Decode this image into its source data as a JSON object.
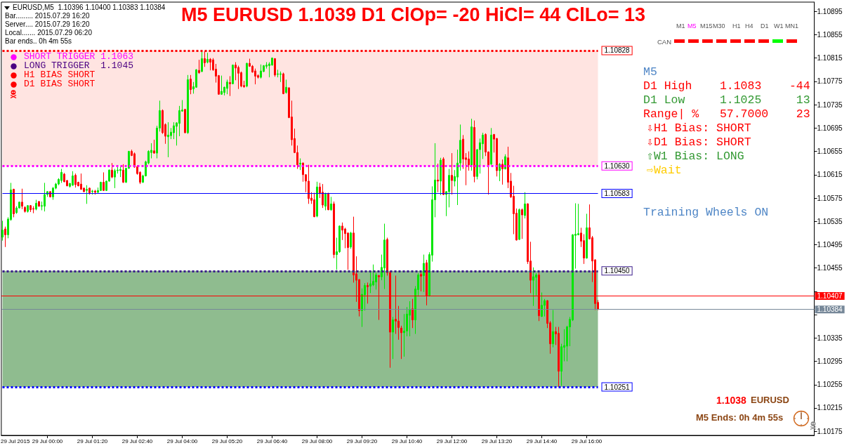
{
  "chart_data": {
    "type": "candlestick",
    "title": "M5 EURUSD 1.1039 D1 ClOp= -20 HiCl= 44 ClLo= 13",
    "x": [
      "2015-07-28T22:40",
      "2015-07-28T22:45",
      "2015-07-28T22:50",
      "2015-07-28T22:55",
      "2015-07-28T23:00",
      "2015-07-28T23:05",
      "2015-07-28T23:10",
      "2015-07-28T23:15",
      "2015-07-28T23:20",
      "2015-07-28T23:25",
      "2015-07-28T23:30",
      "2015-07-28T23:35",
      "2015-07-28T23:40",
      "2015-07-28T23:45",
      "2015-07-28T23:50",
      "2015-07-28T23:55",
      "2015-07-29T00:00",
      "2015-07-29T00:05",
      "2015-07-29T00:10",
      "2015-07-29T00:15",
      "2015-07-29T00:20",
      "2015-07-29T00:25",
      "2015-07-29T00:30",
      "2015-07-29T00:35",
      "2015-07-29T00:40",
      "2015-07-29T00:45",
      "2015-07-29T00:50",
      "2015-07-29T00:55",
      "2015-07-29T01:00",
      "2015-07-29T01:05",
      "2015-07-29T01:10",
      "2015-07-29T01:15",
      "2015-07-29T01:20",
      "2015-07-29T01:25",
      "2015-07-29T01:30",
      "2015-07-29T01:35",
      "2015-07-29T01:40",
      "2015-07-29T01:45",
      "2015-07-29T01:50",
      "2015-07-29T01:55",
      "2015-07-29T02:00",
      "2015-07-29T02:05",
      "2015-07-29T02:10",
      "2015-07-29T02:15",
      "2015-07-29T02:20",
      "2015-07-29T02:25",
      "2015-07-29T02:30",
      "2015-07-29T02:35",
      "2015-07-29T02:40",
      "2015-07-29T02:45",
      "2015-07-29T02:50",
      "2015-07-29T02:55",
      "2015-07-29T03:00",
      "2015-07-29T03:05",
      "2015-07-29T03:10",
      "2015-07-29T03:15",
      "2015-07-29T03:20",
      "2015-07-29T03:25",
      "2015-07-29T03:30",
      "2015-07-29T03:35",
      "2015-07-29T03:40",
      "2015-07-29T03:45",
      "2015-07-29T03:50",
      "2015-07-29T03:55",
      "2015-07-29T04:00",
      "2015-07-29T04:05",
      "2015-07-29T04:10",
      "2015-07-29T04:15",
      "2015-07-29T04:20",
      "2015-07-29T04:25",
      "2015-07-29T04:30",
      "2015-07-29T04:35",
      "2015-07-29T04:40",
      "2015-07-29T04:45",
      "2015-07-29T04:50",
      "2015-07-29T04:55",
      "2015-07-29T05:00",
      "2015-07-29T05:05",
      "2015-07-29T05:10",
      "2015-07-29T05:15",
      "2015-07-29T05:20",
      "2015-07-29T05:25",
      "2015-07-29T05:30",
      "2015-07-29T05:35",
      "2015-07-29T05:40",
      "2015-07-29T05:45",
      "2015-07-29T05:50",
      "2015-07-29T05:55",
      "2015-07-29T06:00",
      "2015-07-29T06:05",
      "2015-07-29T06:10",
      "2015-07-29T06:15",
      "2015-07-29T06:20",
      "2015-07-29T06:25",
      "2015-07-29T06:30",
      "2015-07-29T06:35",
      "2015-07-29T06:40",
      "2015-07-29T06:45",
      "2015-07-29T06:50",
      "2015-07-29T06:55",
      "2015-07-29T07:00",
      "2015-07-29T07:05",
      "2015-07-29T07:10",
      "2015-07-29T07:15",
      "2015-07-29T07:20",
      "2015-07-29T07:25",
      "2015-07-29T07:30",
      "2015-07-29T07:35",
      "2015-07-29T07:40",
      "2015-07-29T07:45",
      "2015-07-29T07:50",
      "2015-07-29T07:55",
      "2015-07-29T08:00",
      "2015-07-29T08:05",
      "2015-07-29T08:10",
      "2015-07-29T08:15",
      "2015-07-29T08:20",
      "2015-07-29T08:25",
      "2015-07-29T08:30",
      "2015-07-29T08:35",
      "2015-07-29T08:40",
      "2015-07-29T08:45",
      "2015-07-29T08:50",
      "2015-07-29T08:55",
      "2015-07-29T09:00",
      "2015-07-29T09:05",
      "2015-07-29T09:10",
      "2015-07-29T09:15",
      "2015-07-29T09:20",
      "2015-07-29T09:25",
      "2015-07-29T09:30",
      "2015-07-29T09:35",
      "2015-07-29T09:40",
      "2015-07-29T09:45",
      "2015-07-29T09:50",
      "2015-07-29T09:55",
      "2015-07-29T10:00",
      "2015-07-29T10:05",
      "2015-07-29T10:10",
      "2015-07-29T10:15",
      "2015-07-29T10:20",
      "2015-07-29T10:25",
      "2015-07-29T10:30",
      "2015-07-29T10:35",
      "2015-07-29T10:40",
      "2015-07-29T10:45",
      "2015-07-29T10:50",
      "2015-07-29T10:55",
      "2015-07-29T11:00",
      "2015-07-29T11:05",
      "2015-07-29T11:10",
      "2015-07-29T11:15",
      "2015-07-29T11:20",
      "2015-07-29T11:25",
      "2015-07-29T11:30",
      "2015-07-29T11:35",
      "2015-07-29T11:40",
      "2015-07-29T11:45",
      "2015-07-29T11:50",
      "2015-07-29T11:55",
      "2015-07-29T12:00",
      "2015-07-29T12:05",
      "2015-07-29T12:10",
      "2015-07-29T12:15",
      "2015-07-29T12:20",
      "2015-07-29T12:25",
      "2015-07-29T12:30",
      "2015-07-29T12:35",
      "2015-07-29T12:40",
      "2015-07-29T12:45",
      "2015-07-29T12:50",
      "2015-07-29T12:55",
      "2015-07-29T13:00",
      "2015-07-29T13:05",
      "2015-07-29T13:10",
      "2015-07-29T13:15",
      "2015-07-29T13:20",
      "2015-07-29T13:25",
      "2015-07-29T13:30",
      "2015-07-29T13:35",
      "2015-07-29T13:40",
      "2015-07-29T13:45",
      "2015-07-29T13:50",
      "2015-07-29T13:55",
      "2015-07-29T14:00",
      "2015-07-29T14:05",
      "2015-07-29T14:10",
      "2015-07-29T14:15",
      "2015-07-29T14:20",
      "2015-07-29T14:25",
      "2015-07-29T14:30",
      "2015-07-29T14:35",
      "2015-07-29T14:40",
      "2015-07-29T14:45",
      "2015-07-29T14:50",
      "2015-07-29T14:55",
      "2015-07-29T15:00",
      "2015-07-29T15:05",
      "2015-07-29T15:10",
      "2015-07-29T15:15",
      "2015-07-29T15:20",
      "2015-07-29T15:25",
      "2015-07-29T15:30",
      "2015-07-29T15:35",
      "2015-07-29T15:40",
      "2015-07-29T15:45",
      "2015-07-29T15:50",
      "2015-07-29T15:55",
      "2015-07-29T16:00",
      "2015-07-29T16:05",
      "2015-07-29T16:10",
      "2015-07-29T16:15",
      "2015-07-29T16:20"
    ],
    "ohlc": [
      [
        1.10508,
        1.10536,
        1.10502,
        1.1052
      ],
      [
        1.10522,
        1.10526,
        1.10491,
        1.10512
      ],
      [
        1.10512,
        1.10542,
        1.10506,
        1.10539
      ],
      [
        1.10538,
        1.10601,
        1.10536,
        1.10589
      ],
      [
        1.1059,
        1.10591,
        1.10542,
        1.10548
      ],
      [
        1.1055,
        1.10561,
        1.10548,
        1.10558
      ],
      [
        1.10558,
        1.10569,
        1.10557,
        1.10568
      ],
      [
        1.10568,
        1.10591,
        1.10556,
        1.10561
      ],
      [
        1.10559,
        1.10561,
        1.1055,
        1.10552
      ],
      [
        1.10552,
        1.10563,
        1.1055,
        1.10562
      ],
      [
        1.10562,
        1.10563,
        1.10551,
        1.10555
      ],
      [
        1.10557,
        1.10561,
        1.10549,
        1.10556
      ],
      [
        1.10556,
        1.10572,
        1.10554,
        1.10566
      ],
      [
        1.10569,
        1.1057,
        1.1056,
        1.10561
      ],
      [
        1.10561,
        1.10569,
        1.10554,
        1.10562
      ],
      [
        1.10561,
        1.10601,
        1.10552,
        1.10581
      ],
      [
        1.10581,
        1.10587,
        1.10577,
        1.10586
      ],
      [
        1.10586,
        1.10587,
        1.10576,
        1.10577
      ],
      [
        1.10577,
        1.10594,
        1.10572,
        1.10592
      ],
      [
        1.10592,
        1.10601,
        1.1059,
        1.10599
      ],
      [
        1.10599,
        1.10609,
        1.10597,
        1.10607
      ],
      [
        1.10605,
        1.10625,
        1.10601,
        1.10619
      ],
      [
        1.10616,
        1.10618,
        1.10602,
        1.10603
      ],
      [
        1.10605,
        1.10606,
        1.10595,
        1.10596
      ],
      [
        1.10595,
        1.10601,
        1.10593,
        1.106
      ],
      [
        1.10597,
        1.10621,
        1.10596,
        1.10613
      ],
      [
        1.10614,
        1.10617,
        1.10593,
        1.10598
      ],
      [
        1.10602,
        1.10603,
        1.10595,
        1.10596
      ],
      [
        1.10599,
        1.10617,
        1.10589,
        1.1059
      ],
      [
        1.10592,
        1.10593,
        1.10585,
        1.10586
      ],
      [
        1.10588,
        1.10597,
        1.10565,
        1.1059
      ],
      [
        1.10592,
        1.10593,
        1.10581,
        1.10584
      ],
      [
        1.10586,
        1.10589,
        1.10581,
        1.10587
      ],
      [
        1.10587,
        1.10589,
        1.10581,
        1.10585
      ],
      [
        1.10585,
        1.10593,
        1.10583,
        1.10588
      ],
      [
        1.10588,
        1.10603,
        1.10587,
        1.10602
      ],
      [
        1.10602,
        1.10619,
        1.10587,
        1.10588
      ],
      [
        1.10588,
        1.10605,
        1.10587,
        1.10604
      ],
      [
        1.10604,
        1.10624,
        1.10603,
        1.10623
      ],
      [
        1.10623,
        1.10635,
        1.10609,
        1.10611
      ],
      [
        1.10611,
        1.10625,
        1.10592,
        1.10622
      ],
      [
        1.10622,
        1.10629,
        1.10617,
        1.10623
      ],
      [
        1.10622,
        1.10629,
        1.10611,
        1.10624
      ],
      [
        1.10623,
        1.10633,
        1.10601,
        1.10602
      ],
      [
        1.10602,
        1.10627,
        1.10601,
        1.10626
      ],
      [
        1.10626,
        1.10656,
        1.10625,
        1.10655
      ],
      [
        1.10655,
        1.10658,
        1.10647,
        1.10648
      ],
      [
        1.10651,
        1.10653,
        1.10627,
        1.10628
      ],
      [
        1.10629,
        1.10631,
        1.10615,
        1.10617
      ],
      [
        1.10619,
        1.10621,
        1.10599,
        1.10602
      ],
      [
        1.10602,
        1.10615,
        1.10601,
        1.10613
      ],
      [
        1.10613,
        1.10639,
        1.10612,
        1.10637
      ],
      [
        1.10635,
        1.10657,
        1.10633,
        1.10655
      ],
      [
        1.10653,
        1.10669,
        1.10643,
        1.10657
      ],
      [
        1.10656,
        1.10675,
        1.10651,
        1.10652
      ],
      [
        1.10652,
        1.10699,
        1.10643,
        1.10695
      ],
      [
        1.10695,
        1.10742,
        1.10689,
        1.10725
      ],
      [
        1.10725,
        1.10727,
        1.10685,
        1.10687
      ],
      [
        1.10701,
        1.10703,
        1.10668,
        1.10681
      ],
      [
        1.1068,
        1.10705,
        1.10645,
        1.10683
      ],
      [
        1.10682,
        1.10695,
        1.10676,
        1.10688
      ],
      [
        1.10687,
        1.10705,
        1.10676,
        1.10699
      ],
      [
        1.10698,
        1.10705,
        1.10665,
        1.10704
      ],
      [
        1.10703,
        1.10733,
        1.10681,
        1.10725
      ],
      [
        1.10724,
        1.10743,
        1.10723,
        1.10726
      ],
      [
        1.10727,
        1.10728,
        1.10686,
        1.10687
      ],
      [
        1.10687,
        1.10786,
        1.10685,
        1.10778
      ],
      [
        1.10779,
        1.10786,
        1.10753,
        1.10761
      ],
      [
        1.10762,
        1.10774,
        1.10754,
        1.10766
      ],
      [
        1.10765,
        1.10796,
        1.10764,
        1.10795
      ],
      [
        1.10794,
        1.10812,
        1.10788,
        1.1079
      ],
      [
        1.10792,
        1.10827,
        1.10791,
        1.10814
      ],
      [
        1.10814,
        1.10827,
        1.108,
        1.10807
      ],
      [
        1.10808,
        1.10824,
        1.10806,
        1.10813
      ],
      [
        1.10813,
        1.10815,
        1.10794,
        1.10808
      ],
      [
        1.10812,
        1.10815,
        1.10793,
        1.10795
      ],
      [
        1.10796,
        1.10805,
        1.10773,
        1.10784
      ],
      [
        1.10785,
        1.10786,
        1.10752,
        1.10753
      ],
      [
        1.10753,
        1.10785,
        1.10752,
        1.10758
      ],
      [
        1.10756,
        1.10766,
        1.10751,
        1.10765
      ],
      [
        1.10763,
        1.10778,
        1.10753,
        1.10774
      ],
      [
        1.10773,
        1.10784,
        1.1075,
        1.10771
      ],
      [
        1.10771,
        1.10804,
        1.1077,
        1.10803
      ],
      [
        1.10803,
        1.10808,
        1.10777,
        1.10798
      ],
      [
        1.10799,
        1.10802,
        1.10762,
        1.10789
      ],
      [
        1.1079,
        1.10792,
        1.10765,
        1.10767
      ],
      [
        1.10768,
        1.10776,
        1.10764,
        1.10766
      ],
      [
        1.10767,
        1.10807,
        1.10765,
        1.10806
      ],
      [
        1.10806,
        1.10814,
        1.108,
        1.10801
      ],
      [
        1.10801,
        1.10803,
        1.1079,
        1.10791
      ],
      [
        1.10793,
        1.10797,
        1.1077,
        1.10784
      ],
      [
        1.10785,
        1.10787,
        1.1078,
        1.10782
      ],
      [
        1.10782,
        1.10804,
        1.1078,
        1.10793
      ],
      [
        1.10792,
        1.10803,
        1.10791,
        1.10802
      ],
      [
        1.10801,
        1.10808,
        1.10797,
        1.10803
      ],
      [
        1.10802,
        1.10808,
        1.10782,
        1.10805
      ],
      [
        1.10803,
        1.10816,
        1.10802,
        1.10815
      ],
      [
        1.10814,
        1.10815,
        1.10783,
        1.10786
      ],
      [
        1.10787,
        1.10795,
        1.10782,
        1.10788
      ],
      [
        1.10787,
        1.10792,
        1.10774,
        1.10788
      ],
      [
        1.10788,
        1.1079,
        1.10753,
        1.10754
      ],
      [
        1.10756,
        1.10778,
        1.10754,
        1.10765
      ],
      [
        1.10764,
        1.10765,
        1.10712,
        1.10713
      ],
      [
        1.10714,
        1.10742,
        1.10665,
        1.10675
      ],
      [
        1.10677,
        1.10694,
        1.10652,
        1.10653
      ],
      [
        1.10653,
        1.10665,
        1.10625,
        1.10632
      ],
      [
        1.10633,
        1.10643,
        1.10623,
        1.10635
      ],
      [
        1.10635,
        1.10636,
        1.10603,
        1.10615
      ],
      [
        1.10615,
        1.10616,
        1.10585,
        1.10604
      ],
      [
        1.10604,
        1.10632,
        1.10565,
        1.10574
      ],
      [
        1.10575,
        1.10585,
        1.10565,
        1.10571
      ],
      [
        1.10572,
        1.10584,
        1.10542,
        1.10543
      ],
      [
        1.10544,
        1.10603,
        1.10542,
        1.10594
      ],
      [
        1.10594,
        1.10601,
        1.10575,
        1.10583
      ],
      [
        1.10585,
        1.10599,
        1.10558,
        1.10563
      ],
      [
        1.10561,
        1.10584,
        1.10554,
        1.10583
      ],
      [
        1.10583,
        1.10584,
        1.10554,
        1.10555
      ],
      [
        1.10555,
        1.10577,
        1.10553,
        1.10565
      ],
      [
        1.10565,
        1.10569,
        1.10472,
        1.10478
      ],
      [
        1.10478,
        1.10507,
        1.10452,
        1.10483
      ],
      [
        1.10483,
        1.10528,
        1.10481,
        1.10527
      ],
      [
        1.10527,
        1.10533,
        1.10503,
        1.1052
      ],
      [
        1.10522,
        1.10524,
        1.10489,
        1.10514
      ],
      [
        1.10515,
        1.10516,
        1.10452,
        1.1049
      ],
      [
        1.10491,
        1.10517,
        1.10488,
        1.10515
      ],
      [
        1.10515,
        1.10543,
        1.1043,
        1.10443
      ],
      [
        1.10445,
        1.10475,
        1.10397,
        1.10434
      ],
      [
        1.10435,
        1.10436,
        1.10372,
        1.10382
      ],
      [
        1.10382,
        1.1042,
        1.10354,
        1.1041
      ],
      [
        1.10409,
        1.10429,
        1.10382,
        1.10425
      ],
      [
        1.10425,
        1.1043,
        1.10394,
        1.10423
      ],
      [
        1.10424,
        1.10448,
        1.10412,
        1.10428
      ],
      [
        1.10426,
        1.10461,
        1.10424,
        1.10432
      ],
      [
        1.10431,
        1.10447,
        1.10418,
        1.10443
      ],
      [
        1.10442,
        1.10443,
        1.10366,
        1.1044
      ],
      [
        1.1044,
        1.10478,
        1.10434,
        1.10456
      ],
      [
        1.10455,
        1.10531,
        1.10419,
        1.10503
      ],
      [
        1.10504,
        1.10507,
        1.10442,
        1.10447
      ],
      [
        1.10447,
        1.1045,
        1.10284,
        1.10345
      ],
      [
        1.10345,
        1.10371,
        1.10299,
        1.10366
      ],
      [
        1.10367,
        1.10442,
        1.10342,
        1.10364
      ],
      [
        1.10364,
        1.1039,
        1.10332,
        1.10353
      ],
      [
        1.10352,
        1.10356,
        1.10299,
        1.10344
      ],
      [
        1.10344,
        1.10376,
        1.10303,
        1.10347
      ],
      [
        1.10347,
        1.10388,
        1.10338,
        1.10376
      ],
      [
        1.10374,
        1.10398,
        1.10338,
        1.10384
      ],
      [
        1.10385,
        1.10402,
        1.10352,
        1.10366
      ],
      [
        1.10366,
        1.10424,
        1.10342,
        1.10419
      ],
      [
        1.10418,
        1.10446,
        1.10406,
        1.10443
      ],
      [
        1.10444,
        1.10451,
        1.10415,
        1.10441
      ],
      [
        1.10442,
        1.10478,
        1.10414,
        1.10463
      ],
      [
        1.10464,
        1.10469,
        1.10391,
        1.10407
      ],
      [
        1.10407,
        1.10482,
        1.10406,
        1.10478
      ],
      [
        1.10477,
        1.10595,
        1.10466,
        1.10572
      ],
      [
        1.10572,
        1.10669,
        1.10542,
        1.10606
      ],
      [
        1.10606,
        1.10634,
        1.10585,
        1.10604
      ],
      [
        1.10604,
        1.10644,
        1.1058,
        1.1064
      ],
      [
        1.10642,
        1.10645,
        1.1058,
        1.10581
      ],
      [
        1.10581,
        1.10587,
        1.10544,
        1.10586
      ],
      [
        1.10586,
        1.10625,
        1.10559,
        1.10614
      ],
      [
        1.10614,
        1.10652,
        1.10581,
        1.10605
      ],
      [
        1.10604,
        1.10623,
        1.10595,
        1.10612
      ],
      [
        1.10611,
        1.10658,
        1.10563,
        1.10635
      ],
      [
        1.10635,
        1.10701,
        1.10622,
        1.10674
      ],
      [
        1.10676,
        1.10683,
        1.10625,
        1.10642
      ],
      [
        1.10644,
        1.10652,
        1.10597,
        1.10641
      ],
      [
        1.10642,
        1.10655,
        1.10622,
        1.10632
      ],
      [
        1.10632,
        1.10711,
        1.10622,
        1.10697
      ],
      [
        1.10696,
        1.10708,
        1.10602,
        1.10612
      ],
      [
        1.10612,
        1.10659,
        1.10607,
        1.10658
      ],
      [
        1.10658,
        1.10677,
        1.10617,
        1.1067
      ],
      [
        1.10668,
        1.10687,
        1.10642,
        1.10683
      ],
      [
        1.10684,
        1.10686,
        1.10647,
        1.10654
      ],
      [
        1.10654,
        1.10655,
        1.10581,
        1.10632
      ],
      [
        1.10633,
        1.10695,
        1.10632,
        1.10683
      ],
      [
        1.10684,
        1.10685,
        1.10653,
        1.10676
      ],
      [
        1.10677,
        1.10678,
        1.10612,
        1.10622
      ],
      [
        1.10622,
        1.10635,
        1.10604,
        1.10633
      ],
      [
        1.10633,
        1.10641,
        1.10598,
        1.10625
      ],
      [
        1.10625,
        1.1065,
        1.10624,
        1.10646
      ],
      [
        1.10644,
        1.10663,
        1.10592,
        1.10602
      ],
      [
        1.10604,
        1.10618,
        1.10575,
        1.10577
      ],
      [
        1.10578,
        1.10596,
        1.10513,
        1.10548
      ],
      [
        1.10549,
        1.10557,
        1.10502,
        1.10503
      ],
      [
        1.10504,
        1.10557,
        1.10503,
        1.10555
      ],
      [
        1.10555,
        1.10557,
        1.10505,
        1.10546
      ],
      [
        1.10545,
        1.10585,
        1.1054,
        1.10565
      ],
      [
        1.10565,
        1.10566,
        1.10462,
        1.10466
      ],
      [
        1.10467,
        1.105,
        1.10412,
        1.10434
      ],
      [
        1.10434,
        1.10456,
        1.1039,
        1.1044
      ],
      [
        1.10439,
        1.10446,
        1.10408,
        1.10443
      ],
      [
        1.10443,
        1.10448,
        1.10364,
        1.10373
      ],
      [
        1.10372,
        1.10413,
        1.10371,
        1.10391
      ],
      [
        1.10391,
        1.10402,
        1.10372,
        1.10399
      ],
      [
        1.10399,
        1.104,
        1.10352,
        1.1036
      ],
      [
        1.10361,
        1.10364,
        1.10308,
        1.10325
      ],
      [
        1.10325,
        1.10383,
        1.10319,
        1.10346
      ],
      [
        1.10346,
        1.10354,
        1.10323,
        1.10342
      ],
      [
        1.10343,
        1.10354,
        1.10251,
        1.10278
      ],
      [
        1.10278,
        1.10325,
        1.10253,
        1.1032
      ],
      [
        1.10319,
        1.1035,
        1.10295,
        1.10322
      ],
      [
        1.10321,
        1.10356,
        1.10295,
        1.10354
      ],
      [
        1.10354,
        1.10371,
        1.10321,
        1.10367
      ],
      [
        1.10366,
        1.10513,
        1.10364,
        1.10512
      ],
      [
        1.10511,
        1.10566,
        1.10454,
        1.10513
      ],
      [
        1.10512,
        1.10565,
        1.10511,
        1.10514
      ],
      [
        1.10515,
        1.10524,
        1.10491,
        1.10501
      ],
      [
        1.10502,
        1.10513,
        1.10462,
        1.10472
      ],
      [
        1.10472,
        1.10548,
        1.10471,
        1.10524
      ],
      [
        1.10524,
        1.10564,
        1.10504,
        1.10505
      ],
      [
        1.10507,
        1.1051,
        1.10431,
        1.10467
      ],
      [
        1.10469,
        1.1047,
        1.10383,
        1.10394
      ],
      [
        1.10396,
        1.104,
        1.10383,
        1.10384
      ]
    ],
    "xlim": [
      "2015-07-28T22:38",
      "2015-07-29T22:45"
    ],
    "xticks": [
      {
        "value": "2015-07-29T00:00",
        "label": "29 Jul 00:00"
      },
      {
        "value": "2015-07-29T01:20",
        "label": "29 Jul 01:20"
      },
      {
        "value": "2015-07-29T02:40",
        "label": "29 Jul 02:40"
      },
      {
        "value": "2015-07-29T04:00",
        "label": "29 Jul 04:00"
      },
      {
        "value": "2015-07-29T05:20",
        "label": "29 Jul 05:20"
      },
      {
        "value": "2015-07-29T06:40",
        "label": "29 Jul 06:40"
      },
      {
        "value": "2015-07-29T08:00",
        "label": "29 Jul 08:00"
      },
      {
        "value": "2015-07-29T09:20",
        "label": "29 Jul 09:20"
      },
      {
        "value": "2015-07-29T10:40",
        "label": "29 Jul 10:40"
      },
      {
        "value": "2015-07-29T12:00",
        "label": "29 Jul 12:00"
      },
      {
        "value": "2015-07-29T13:20",
        "label": "29 Jul 13:20"
      },
      {
        "value": "2015-07-29T14:40",
        "label": "29 Jul 14:40"
      },
      {
        "value": "2015-07-29T16:00",
        "label": "29 Jul 16:00"
      }
    ],
    "ylim": [
      1.10168,
      1.10911
    ],
    "yticks": [
      1.10175,
      1.10215,
      1.10255,
      1.10295,
      1.10335,
      {
        "value": 1.10375,
        "label": null
      },
      {
        "value": 1.10415,
        "label": null
      },
      1.10455,
      1.10495,
      1.10535,
      1.10575,
      1.10615,
      1.10655,
      1.10695,
      1.10735,
      1.10775,
      1.10815,
      1.10855,
      1.10895
    ],
    "bands": [
      {
        "axis": "y",
        "from": 1.1063,
        "to": 1.10828,
        "color": "#ffe4e1"
      },
      {
        "axis": "y",
        "from": 1.10251,
        "to": 1.1045,
        "color": "#8fbc8f"
      }
    ],
    "ref_lines": [
      {
        "axis": "y",
        "value": 1.10828,
        "label": "1.10828",
        "color": "#ff0000",
        "line_style": "dotted"
      },
      {
        "axis": "y",
        "value": 1.1063,
        "label": "1.10630",
        "color": "#ff00ff",
        "line_style": "dotted"
      },
      {
        "axis": "y",
        "value": 1.10583,
        "label": "1.10583",
        "color": "#0000ff",
        "line_style": "solid"
      },
      {
        "axis": "y",
        "value": 1.1045,
        "label": "1.10450",
        "color": "#3c1e8c",
        "line_style": "dotted"
      },
      {
        "axis": "y",
        "value": 1.10251,
        "label": "1.10251",
        "color": "#0000ff",
        "line_style": "dotted"
      },
      {
        "axis": "y",
        "value": 1.10407,
        "label": "1.10407",
        "color": "#ff0000",
        "line_style": "solid"
      },
      {
        "axis": "y",
        "value": 1.10384,
        "label": "1.10384",
        "color": "#778899",
        "line_style": "solid"
      }
    ],
    "annotations": [
      "EURUSD,M5  1.10396 1.10400 1.10383 1.10384",
      "Bar......... 2015.07.29 16:20",
      "Server.... 2015.07.29 16:20",
      "Local....... 2015.07.29 06:20",
      "Bar ends.. 0h 4m 55s",
      "SHORT TRIGGER 1.1063",
      "LONG TRIGGER  1.1045",
      "H1 BIAS SHORT",
      "D1 BIAS SHORT",
      "M1",
      "M5",
      "M15",
      "M30",
      "H1",
      "H4",
      "D1",
      "W1",
      "MN1",
      "CAN",
      "M5",
      "D1 High    1.1083    -44",
      "D1 Low     1.1025     13",
      "Range| %   57.7000    23",
      "⇩H1 Bias: SHORT",
      "⇩D1 Bias: SHORT",
      "⇧W1 Bias: LONG",
      "⇨Wait",
      "Training Wheels ON",
      "1.1038",
      "EURUSD",
      "M5 Ends: 0h 4m 55s",
      "29 Jul 2015"
    ]
  }
}
